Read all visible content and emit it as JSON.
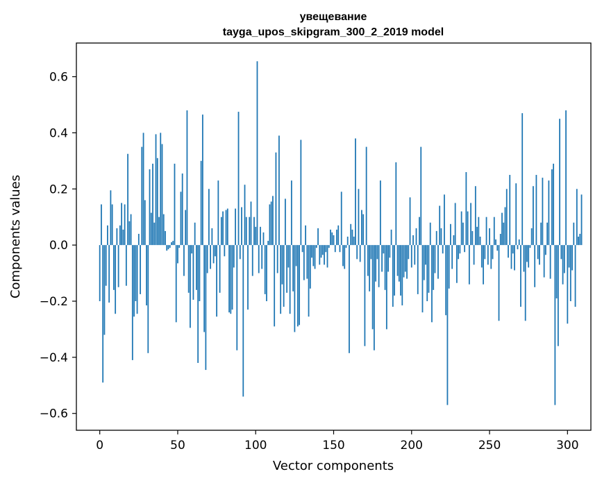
{
  "chart_data": {
    "type": "bar",
    "title_line1": "увещевание",
    "title_line2": "tayga_upos_skipgram_300_2_2019 model",
    "xlabel": "Vector components",
    "ylabel": "Components values",
    "xlim": [
      -15,
      315
    ],
    "ylim": [
      -0.66,
      0.72
    ],
    "xticks": [
      0,
      50,
      100,
      150,
      200,
      250,
      300
    ],
    "xtick_labels": [
      "0",
      "50",
      "100",
      "150",
      "200",
      "250",
      "300"
    ],
    "yticks": [
      -0.6,
      -0.4,
      -0.2,
      0.0,
      0.2,
      0.4,
      0.6
    ],
    "ytick_labels": [
      "−0.6",
      "−0.4",
      "−0.2",
      "0.0",
      "0.2",
      "0.4",
      "0.6"
    ],
    "bar_color": "#1f77b4",
    "values": [
      -0.2,
      0.145,
      -0.49,
      -0.32,
      -0.145,
      0.07,
      -0.205,
      0.195,
      0.145,
      -0.16,
      -0.245,
      0.06,
      -0.15,
      0.07,
      0.15,
      0.055,
      0.145,
      -0.145,
      0.325,
      0.085,
      0.11,
      -0.41,
      -0.255,
      -0.2,
      -0.245,
      0.04,
      -0.175,
      0.35,
      0.4,
      0.16,
      -0.215,
      -0.385,
      0.27,
      0.115,
      0.29,
      0.08,
      0.395,
      0.31,
      0.1,
      0.4,
      0.36,
      0.11,
      0.05,
      -0.02,
      -0.015,
      -0.01,
      0.01,
      0.015,
      0.29,
      -0.275,
      -0.065,
      -0.01,
      0.19,
      0.255,
      -0.11,
      0.125,
      0.48,
      -0.17,
      -0.295,
      -0.03,
      -0.195,
      0.08,
      -0.16,
      -0.42,
      -0.2,
      0.3,
      0.465,
      -0.31,
      -0.445,
      -0.1,
      0.2,
      -0.085,
      0.06,
      -0.065,
      -0.04,
      -0.255,
      0.23,
      -0.17,
      0.1,
      0.12,
      -0.04,
      0.125,
      0.13,
      -0.24,
      -0.245,
      -0.23,
      -0.08,
      0.13,
      -0.375,
      0.475,
      -0.05,
      0.135,
      -0.54,
      0.215,
      0.1,
      -0.23,
      0.1,
      0.155,
      -0.11,
      0.1,
      0.065,
      0.655,
      -0.1,
      0.065,
      -0.085,
      0.045,
      -0.175,
      -0.2,
      0.015,
      0.145,
      0.155,
      0.175,
      -0.29,
      0.33,
      -0.1,
      0.39,
      -0.245,
      -0.14,
      -0.22,
      0.165,
      -0.17,
      -0.08,
      -0.245,
      0.23,
      -0.165,
      -0.31,
      -0.075,
      -0.29,
      -0.285,
      0.375,
      -0.025,
      -0.125,
      0.07,
      -0.12,
      -0.255,
      -0.155,
      -0.045,
      -0.075,
      -0.085,
      -0.01,
      0.06,
      -0.07,
      -0.045,
      -0.035,
      -0.07,
      -0.025,
      -0.08,
      -0.01,
      0.055,
      0.045,
      0.035,
      -0.025,
      0.055,
      0.07,
      -0.025,
      0.19,
      -0.075,
      -0.085,
      -0.01,
      0.03,
      -0.385,
      0.075,
      0.055,
      0.03,
      0.38,
      -0.05,
      0.2,
      -0.06,
      0.125,
      0.11,
      -0.36,
      0.35,
      -0.11,
      -0.165,
      -0.05,
      -0.3,
      -0.375,
      -0.13,
      -0.05,
      -0.15,
      0.23,
      -0.095,
      -0.03,
      -0.16,
      -0.3,
      -0.095,
      -0.045,
      0.055,
      -0.22,
      -0.18,
      0.295,
      -0.11,
      -0.13,
      -0.18,
      -0.215,
      -0.115,
      -0.095,
      -0.12,
      -0.05,
      0.17,
      -0.08,
      0.035,
      -0.07,
      0.06,
      -0.175,
      0.1,
      0.35,
      -0.24,
      -0.125,
      -0.07,
      -0.2,
      -0.17,
      0.08,
      -0.275,
      -0.16,
      -0.1,
      0.05,
      -0.12,
      0.14,
      0.06,
      -0.03,
      0.18,
      -0.25,
      -0.57,
      -0.155,
      0.075,
      -0.085,
      0.035,
      0.15,
      -0.135,
      -0.05,
      -0.03,
      0.12,
      0.08,
      -0.025,
      0.26,
      0.12,
      -0.14,
      0.15,
      0.05,
      -0.07,
      0.21,
      0.065,
      0.1,
      0.03,
      -0.08,
      -0.14,
      -0.05,
      0.1,
      -0.07,
      0.06,
      -0.085,
      -0.05,
      0.1,
      0.02,
      -0.02,
      -0.27,
      0.04,
      0.115,
      0.08,
      0.135,
      0.2,
      -0.045,
      0.25,
      -0.085,
      -0.03,
      -0.09,
      0.22,
      -0.015,
      0.02,
      -0.22,
      0.47,
      -0.095,
      -0.27,
      -0.06,
      -0.08,
      -0.01,
      0.06,
      0.21,
      -0.15,
      0.25,
      -0.05,
      -0.07,
      0.08,
      0.24,
      -0.115,
      -0.035,
      0.08,
      0.23,
      -0.12,
      0.27,
      0.29,
      -0.57,
      -0.19,
      -0.36,
      0.45,
      -0.05,
      -0.14,
      -0.1,
      0.48,
      -0.28,
      -0.08,
      -0.2,
      -0.09,
      0.08,
      -0.22,
      0.2,
      0.03,
      0.04,
      0.18
    ]
  }
}
